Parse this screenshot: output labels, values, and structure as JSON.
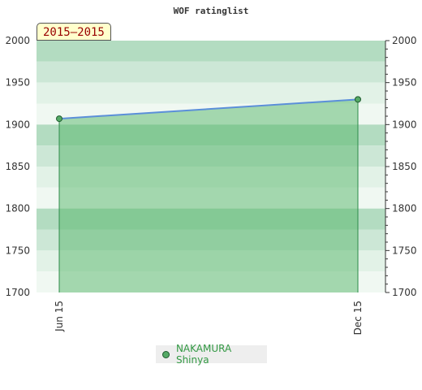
{
  "chart_data": {
    "type": "area",
    "title": "WOF ratinglist",
    "period": "2015–2015",
    "categories": [
      "Jun 15",
      "Dec 15"
    ],
    "series": [
      {
        "name": "NAKAMURA Shinya",
        "values": [
          1907,
          1930
        ]
      }
    ],
    "yticks": [
      1700,
      1750,
      1800,
      1850,
      1900,
      1950,
      2000
    ],
    "ylim": [
      1700,
      2000
    ],
    "grid": "horizontal bands",
    "legend_position": "bottom",
    "colors": {
      "line": "#5b8fd9",
      "area": "#55b66a",
      "marker": "#55aa66",
      "marker_stroke": "#1e5a2e",
      "band_dark": "#b3dcc1",
      "band_mid": "#cce7d6",
      "band_light": "#e2f2e7",
      "band_pale": "#f0f8f2"
    }
  }
}
